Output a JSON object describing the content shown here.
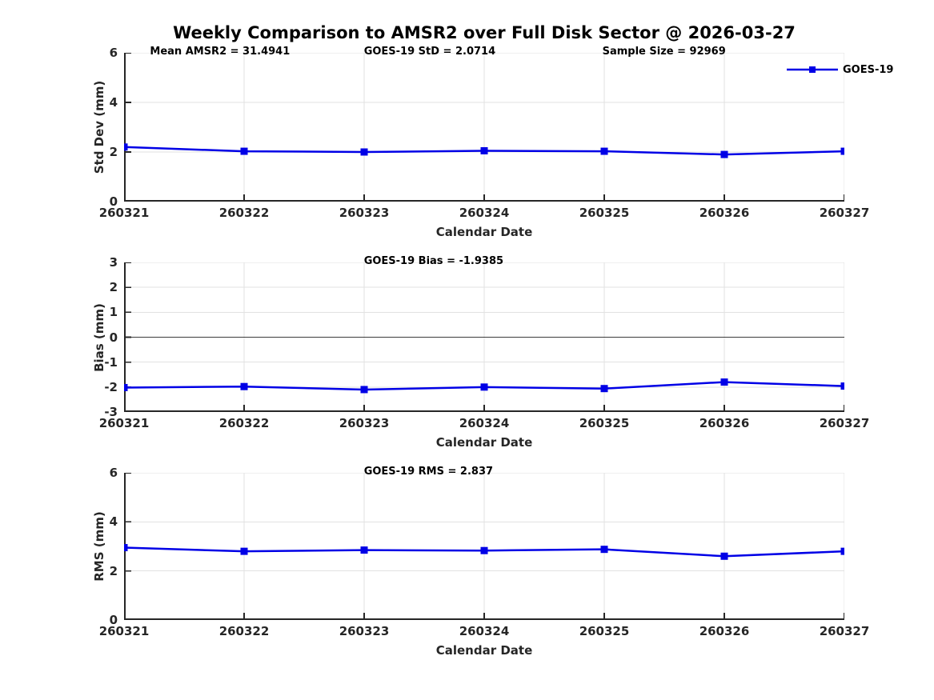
{
  "title": "Weekly Comparison to AMSR2 over Full Disk Sector @ 2026-03-27",
  "legend": {
    "label": "GOES-19",
    "position": "top-right",
    "boxed": false
  },
  "colors": {
    "line": "#0000e6",
    "marker": "#0000e6",
    "grid": "#e2e2e2",
    "axis": "#262626",
    "zero_line": "#3c3c3c",
    "background": "#ffffff",
    "text": "#000000"
  },
  "x_axis": {
    "label": "Calendar Date",
    "ticks": [
      "260321",
      "260322",
      "260323",
      "260324",
      "260325",
      "260326",
      "260327"
    ]
  },
  "chart_data": [
    {
      "type": "line",
      "panel": "std-dev",
      "annotations": [
        "Mean AMSR2 = 31.4941",
        "GOES-19 StD = 2.0714",
        "Sample Size = 92969"
      ],
      "xlabel": "Calendar Date",
      "ylabel": "Std Dev (mm)",
      "x": [
        "260321",
        "260322",
        "260323",
        "260324",
        "260325",
        "260326",
        "260327"
      ],
      "series": [
        {
          "name": "GOES-19",
          "values": [
            2.2,
            2.03,
            2.0,
            2.05,
            2.03,
            1.9,
            2.03
          ]
        }
      ],
      "ylim": [
        0,
        6
      ],
      "yticks": [
        0,
        2,
        4,
        6
      ],
      "grid": true,
      "legend": true
    },
    {
      "type": "line",
      "panel": "bias",
      "annotations": [
        "GOES-19 Bias  = -1.9385"
      ],
      "xlabel": "Calendar Date",
      "ylabel": "Bias (mm)",
      "x": [
        "260321",
        "260322",
        "260323",
        "260324",
        "260325",
        "260326",
        "260327"
      ],
      "series": [
        {
          "name": "GOES-19",
          "values": [
            -2.02,
            -1.98,
            -2.1,
            -2.0,
            -2.06,
            -1.8,
            -1.96
          ]
        }
      ],
      "ylim": [
        -3,
        3
      ],
      "yticks": [
        -3,
        -2,
        -1,
        0,
        1,
        2,
        3
      ],
      "zero_line": true,
      "grid": true,
      "legend": false
    },
    {
      "type": "line",
      "panel": "rms",
      "annotations": [
        "GOES-19 RMS = 2.837"
      ],
      "xlabel": "Calendar Date",
      "ylabel": "RMS (mm)",
      "x": [
        "260321",
        "260322",
        "260323",
        "260324",
        "260325",
        "260326",
        "260327"
      ],
      "series": [
        {
          "name": "GOES-19",
          "values": [
            2.95,
            2.8,
            2.85,
            2.83,
            2.88,
            2.6,
            2.8
          ]
        }
      ],
      "ylim": [
        0,
        6
      ],
      "yticks": [
        0,
        2,
        4,
        6
      ],
      "grid": true,
      "legend": false
    }
  ]
}
